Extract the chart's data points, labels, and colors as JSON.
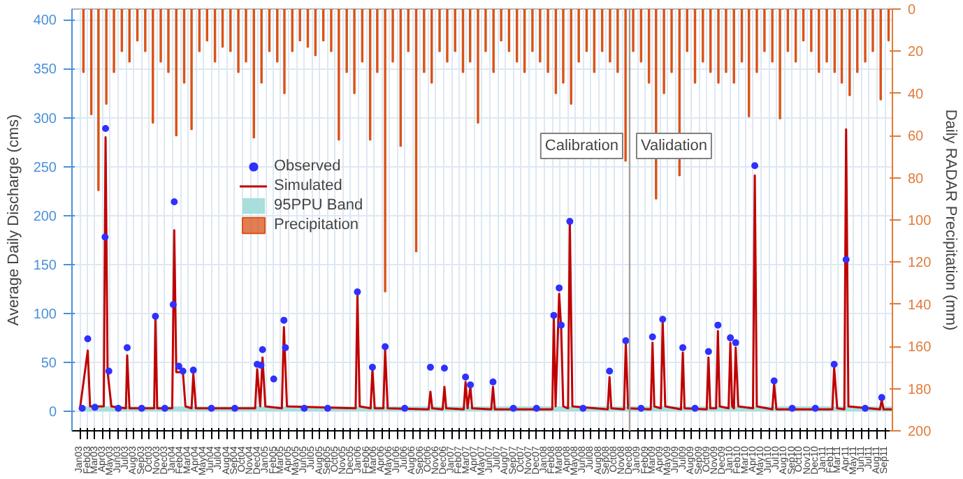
{
  "chart_data": {
    "type": "line",
    "ylabel": "Average Daily Discharge (cms)",
    "y2label": "Daily RADAR Precipitation (mm)",
    "xlim": [
      "2002-12-01",
      "2011-09-30"
    ],
    "ylim": [
      -20,
      411
    ],
    "y2lim": [
      200,
      0
    ],
    "yticks": [
      0,
      50,
      100,
      150,
      200,
      250,
      300,
      350,
      400
    ],
    "y2ticks": [
      0,
      20,
      40,
      60,
      80,
      100,
      120,
      140,
      160,
      180,
      200
    ],
    "xticks": [
      {
        "value": "2003-01",
        "label": "Jan03"
      },
      {
        "value": "2003-02",
        "label": "Feb03"
      },
      {
        "value": "2003-03",
        "label": "Mar03"
      },
      {
        "value": "2003-04",
        "label": "Apr03"
      },
      {
        "value": "2003-05",
        "label": "May03"
      },
      {
        "value": "2003-06",
        "label": "Jun03"
      },
      {
        "value": "2003-07",
        "label": "Jul03"
      },
      {
        "value": "2003-08",
        "label": "Aug03"
      },
      {
        "value": "2003-09",
        "label": "Sep03"
      },
      {
        "value": "2003-10",
        "label": "Oct03"
      },
      {
        "value": "2003-11",
        "label": "Nov03"
      },
      {
        "value": "2003-12",
        "label": "Dec03"
      },
      {
        "value": "2004-01",
        "label": "Jan04"
      },
      {
        "value": "2004-02",
        "label": "Feb04"
      },
      {
        "value": "2004-03",
        "label": "Mar04"
      },
      {
        "value": "2004-04",
        "label": "Apr04"
      },
      {
        "value": "2004-05",
        "label": "May04"
      },
      {
        "value": "2004-06",
        "label": "Jun04"
      },
      {
        "value": "2004-07",
        "label": "Jul04"
      },
      {
        "value": "2004-08",
        "label": "Aug04"
      },
      {
        "value": "2004-09",
        "label": "Sep04"
      },
      {
        "value": "2004-10",
        "label": "Oct04"
      },
      {
        "value": "2004-11",
        "label": "Nov04"
      },
      {
        "value": "2004-12",
        "label": "Dec04"
      },
      {
        "value": "2005-01",
        "label": "Jan05"
      },
      {
        "value": "2005-02",
        "label": "Feb05"
      },
      {
        "value": "2005-03",
        "label": "Mar05"
      },
      {
        "value": "2005-04",
        "label": "Apr05"
      },
      {
        "value": "2005-05",
        "label": "May05"
      },
      {
        "value": "2005-06",
        "label": "Jun05"
      },
      {
        "value": "2005-07",
        "label": "Jul05"
      },
      {
        "value": "2005-08",
        "label": "Aug05"
      },
      {
        "value": "2005-09",
        "label": "Sep05"
      },
      {
        "value": "2005-10",
        "label": "Oct05"
      },
      {
        "value": "2005-11",
        "label": "Nov05"
      },
      {
        "value": "2005-12",
        "label": "Dec05"
      },
      {
        "value": "2006-01",
        "label": "Jan06"
      },
      {
        "value": "2006-02",
        "label": "Feb06"
      },
      {
        "value": "2006-03",
        "label": "Mar06"
      },
      {
        "value": "2006-04",
        "label": "Apr06"
      },
      {
        "value": "2006-05",
        "label": "May06"
      },
      {
        "value": "2006-06",
        "label": "Jun06"
      },
      {
        "value": "2006-07",
        "label": "Jul06"
      },
      {
        "value": "2006-08",
        "label": "Aug06"
      },
      {
        "value": "2006-09",
        "label": "Sep06"
      },
      {
        "value": "2006-10",
        "label": "Oct06"
      },
      {
        "value": "2006-11",
        "label": "Nov06"
      },
      {
        "value": "2006-12",
        "label": "Dec06"
      },
      {
        "value": "2007-01",
        "label": "Jan07"
      },
      {
        "value": "2007-02",
        "label": "Feb07"
      },
      {
        "value": "2007-03",
        "label": "Mar07"
      },
      {
        "value": "2007-04",
        "label": "Apr07"
      },
      {
        "value": "2007-05",
        "label": "May07"
      },
      {
        "value": "2007-06",
        "label": "Jun07"
      },
      {
        "value": "2007-07",
        "label": "Jul07"
      },
      {
        "value": "2007-08",
        "label": "Aug07"
      },
      {
        "value": "2007-09",
        "label": "Sep07"
      },
      {
        "value": "2007-10",
        "label": "Oct07"
      },
      {
        "value": "2007-11",
        "label": "Nov07"
      },
      {
        "value": "2007-12",
        "label": "Dec07"
      },
      {
        "value": "2008-01",
        "label": "Jan08"
      },
      {
        "value": "2008-02",
        "label": "Feb08"
      },
      {
        "value": "2008-03",
        "label": "Mar08"
      },
      {
        "value": "2008-04",
        "label": "Apr08"
      },
      {
        "value": "2008-05",
        "label": "May08"
      },
      {
        "value": "2008-06",
        "label": "Jun08"
      },
      {
        "value": "2008-07",
        "label": "Jul08"
      },
      {
        "value": "2008-08",
        "label": "Aug08"
      },
      {
        "value": "2008-09",
        "label": "Sep08"
      },
      {
        "value": "2008-10",
        "label": "Oct08"
      },
      {
        "value": "2008-11",
        "label": "Nov08"
      },
      {
        "value": "2008-12",
        "label": "Dec08"
      },
      {
        "value": "2009-01",
        "label": "Jan09"
      },
      {
        "value": "2009-02",
        "label": "Feb09"
      },
      {
        "value": "2009-03",
        "label": "Mar09"
      },
      {
        "value": "2009-04",
        "label": "Apr09"
      },
      {
        "value": "2009-05",
        "label": "May09"
      },
      {
        "value": "2009-06",
        "label": "Jun09"
      },
      {
        "value": "2009-07",
        "label": "Jul09"
      },
      {
        "value": "2009-08",
        "label": "Aug09"
      },
      {
        "value": "2009-09",
        "label": "Sep09"
      },
      {
        "value": "2009-10",
        "label": "Oct09"
      },
      {
        "value": "2009-11",
        "label": "Nov09"
      },
      {
        "value": "2009-12",
        "label": "Dec09"
      },
      {
        "value": "2010-01",
        "label": "Jan10"
      },
      {
        "value": "2010-02",
        "label": "Feb10"
      },
      {
        "value": "2010-03",
        "label": "Mar10"
      },
      {
        "value": "2010-04",
        "label": "Apr10"
      },
      {
        "value": "2010-05",
        "label": "May10"
      },
      {
        "value": "2010-06",
        "label": "Jun10"
      },
      {
        "value": "2010-07",
        "label": "Jul10"
      },
      {
        "value": "2010-08",
        "label": "Aug10"
      },
      {
        "value": "2010-09",
        "label": "Sep10"
      },
      {
        "value": "2010-10",
        "label": "Oct10"
      },
      {
        "value": "2010-11",
        "label": "Nov10"
      },
      {
        "value": "2010-12",
        "label": "Dec10"
      },
      {
        "value": "2011-01",
        "label": "Jan11"
      },
      {
        "value": "2011-02",
        "label": "Feb11"
      },
      {
        "value": "2011-03",
        "label": "Mar11"
      },
      {
        "value": "2011-04",
        "label": "Apr11"
      },
      {
        "value": "2011-05",
        "label": "May11"
      },
      {
        "value": "2011-06",
        "label": "Jun11"
      },
      {
        "value": "2011-07",
        "label": "Jul11"
      },
      {
        "value": "2011-08",
        "label": "Aug11"
      },
      {
        "value": "2011-09",
        "label": "Sep11"
      }
    ],
    "grid": true,
    "legend": "left",
    "ref_lines": [
      {
        "axis": "x",
        "value": "2008-12-01",
        "color": "#a0a0a0"
      }
    ],
    "annotations": [
      "Calibration",
      "Validation"
    ],
    "series": [
      {
        "name": "Precipitation",
        "type": "bar",
        "axis": "y2",
        "color": "#d95319",
        "x": [
          "2003-01-15",
          "2003-02-15",
          "2003-03-15",
          "2003-04-15",
          "2003-05-15",
          "2003-06-15",
          "2003-07-15",
          "2003-08-15",
          "2003-09-15",
          "2003-10-15",
          "2003-11-15",
          "2003-12-15",
          "2004-01-15",
          "2004-02-15",
          "2004-03-15",
          "2004-04-15",
          "2004-05-15",
          "2004-06-15",
          "2004-07-15",
          "2004-08-15",
          "2004-09-15",
          "2004-10-15",
          "2004-11-15",
          "2004-12-15",
          "2005-01-15",
          "2005-02-15",
          "2005-03-15",
          "2005-04-15",
          "2005-05-15",
          "2005-06-15",
          "2005-07-15",
          "2005-08-15",
          "2005-09-15",
          "2005-10-15",
          "2005-11-15",
          "2005-12-15",
          "2006-01-15",
          "2006-02-15",
          "2006-03-15",
          "2006-04-15",
          "2006-05-15",
          "2006-06-15",
          "2006-07-15",
          "2006-08-15",
          "2006-09-15",
          "2006-10-15",
          "2006-11-15",
          "2006-12-15",
          "2007-01-15",
          "2007-02-15",
          "2007-03-15",
          "2007-04-15",
          "2007-05-15",
          "2007-06-15",
          "2007-07-15",
          "2007-08-15",
          "2007-09-15",
          "2007-10-15",
          "2007-11-15",
          "2007-12-15",
          "2008-01-15",
          "2008-02-15",
          "2008-03-15",
          "2008-04-15",
          "2008-05-15",
          "2008-06-15",
          "2008-07-15",
          "2008-08-15",
          "2008-09-15",
          "2008-10-15",
          "2008-11-15",
          "2008-12-15",
          "2009-01-15",
          "2009-02-15",
          "2009-03-15",
          "2009-04-15",
          "2009-05-15",
          "2009-06-15",
          "2009-07-15",
          "2009-08-15",
          "2009-09-15",
          "2009-10-15",
          "2009-11-15",
          "2009-12-15",
          "2010-01-15",
          "2010-02-15",
          "2010-03-15",
          "2010-04-15",
          "2010-05-15",
          "2010-06-15",
          "2010-07-15",
          "2010-08-15",
          "2010-09-15",
          "2010-10-15",
          "2010-11-15",
          "2010-12-15",
          "2011-01-15",
          "2011-02-15",
          "2011-03-15",
          "2011-04-15",
          "2011-05-15",
          "2011-06-15",
          "2011-07-15",
          "2011-08-15",
          "2011-09-15"
        ],
        "values": [
          30,
          50,
          86,
          45,
          30,
          20,
          25,
          15,
          20,
          54,
          25,
          30,
          60,
          35,
          57,
          20,
          15,
          25,
          18,
          20,
          30,
          25,
          61,
          35,
          20,
          25,
          40,
          20,
          15,
          18,
          22,
          15,
          20,
          62,
          30,
          40,
          25,
          62,
          30,
          134,
          25,
          65,
          20,
          115,
          30,
          35,
          20,
          25,
          20,
          30,
          25,
          54,
          20,
          30,
          15,
          20,
          25,
          30,
          20,
          25,
          30,
          40,
          35,
          45,
          25,
          20,
          30,
          20,
          25,
          30,
          72,
          20,
          25,
          35,
          90,
          40,
          30,
          79,
          20,
          35,
          25,
          30,
          35,
          30,
          35,
          25,
          51,
          30,
          20,
          25,
          52,
          20,
          25,
          15,
          20,
          30,
          25,
          30,
          35,
          41,
          30,
          25,
          20,
          43,
          15
        ]
      },
      {
        "name": "95PPU Band",
        "type": "area",
        "color": "#a8dedb",
        "x": [
          "2003-01-01",
          "2011-09-30"
        ],
        "values": [
          5,
          5
        ]
      },
      {
        "name": "Simulated",
        "color": "#c00000",
        "line_style": "solid",
        "x": [
          "2003-01-01",
          "2003-02-01",
          "2003-02-10",
          "2003-04-05",
          "2003-04-12",
          "2003-04-20",
          "2003-05-05",
          "2003-07-01",
          "2003-07-06",
          "2003-07-15",
          "2003-10-20",
          "2003-10-25",
          "2003-11-01",
          "2003-12-30",
          "2004-01-07",
          "2004-01-15",
          "2004-02-10",
          "2004-02-20",
          "2004-03-15",
          "2004-03-22",
          "2004-04-01",
          "2004-11-20",
          "2004-11-28",
          "2004-12-10",
          "2004-12-19",
          "2004-12-30",
          "2005-03-05",
          "2005-03-13",
          "2005-03-25",
          "2005-12-20",
          "2005-12-27",
          "2006-01-05",
          "2006-02-17",
          "2006-02-24",
          "2006-03-05",
          "2006-04-08",
          "2006-04-15",
          "2006-04-25",
          "2006-10-03",
          "2006-10-10",
          "2006-10-17",
          "2006-11-27",
          "2006-12-04",
          "2006-12-11",
          "2007-02-18",
          "2007-02-25",
          "2007-03-05",
          "2007-03-16",
          "2007-03-23",
          "2007-06-06",
          "2007-06-13",
          "2007-06-20",
          "2008-02-01",
          "2008-02-07",
          "2008-02-14",
          "2008-02-28",
          "2008-03-07",
          "2008-03-15",
          "2008-04-03",
          "2008-04-10",
          "2008-04-20",
          "2008-09-06",
          "2008-09-13",
          "2008-09-20",
          "2008-11-09",
          "2008-11-16",
          "2008-11-25",
          "2009-02-22",
          "2009-03-01",
          "2009-03-08",
          "2009-04-03",
          "2009-04-10",
          "2009-04-20",
          "2009-06-21",
          "2009-06-28",
          "2009-07-05",
          "2009-09-30",
          "2009-10-07",
          "2009-10-14",
          "2009-11-06",
          "2009-11-13",
          "2009-11-20",
          "2009-12-25",
          "2010-01-01",
          "2010-01-08",
          "2010-01-15",
          "2010-01-22",
          "2010-02-01",
          "2010-03-31",
          "2010-04-07",
          "2010-04-15",
          "2010-06-15",
          "2010-06-22",
          "2010-07-01",
          "2011-02-06",
          "2011-02-13",
          "2011-02-25",
          "2011-03-25",
          "2011-04-01",
          "2011-04-10",
          "2011-08-12",
          "2011-08-19",
          "2011-08-26",
          "2011-09-30"
        ],
        "values": [
          2,
          62,
          5,
          5,
          280,
          40,
          5,
          3,
          57,
          3,
          3,
          95,
          3,
          3,
          185,
          40,
          40,
          5,
          3,
          38,
          3,
          3,
          43,
          5,
          55,
          5,
          3,
          86,
          5,
          3,
          118,
          5,
          3,
          43,
          3,
          3,
          63,
          3,
          2,
          20,
          3,
          2,
          25,
          3,
          2,
          30,
          3,
          25,
          3,
          2,
          25,
          2,
          2,
          95,
          5,
          120,
          85,
          5,
          3,
          194,
          5,
          2,
          35,
          3,
          2,
          70,
          3,
          2,
          70,
          5,
          3,
          92,
          5,
          2,
          60,
          3,
          2,
          55,
          3,
          3,
          82,
          5,
          3,
          70,
          5,
          3,
          65,
          5,
          3,
          241,
          5,
          2,
          28,
          2,
          2,
          45,
          3,
          2,
          288,
          5,
          2,
          12,
          2,
          2
        ]
      },
      {
        "name": "Observed",
        "type": "scatter",
        "marker": "circle",
        "color": "#3030ff",
        "x": [
          "2003-01-10",
          "2003-02-01",
          "2003-03-01",
          "2003-04-10",
          "2003-04-12",
          "2003-04-25",
          "2003-06-01",
          "2003-07-06",
          "2003-09-01",
          "2003-10-25",
          "2003-12-01",
          "2004-01-03",
          "2004-01-07",
          "2004-01-25",
          "2004-02-10",
          "2004-03-22",
          "2004-06-01",
          "2004-09-01",
          "2004-11-28",
          "2004-12-13",
          "2004-12-19",
          "2005-02-01",
          "2005-03-13",
          "2005-03-19",
          "2005-06-01",
          "2005-09-01",
          "2005-12-27",
          "2006-02-24",
          "2006-04-15",
          "2006-07-01",
          "2006-10-10",
          "2006-12-04",
          "2007-02-25",
          "2007-03-16",
          "2007-06-13",
          "2007-09-01",
          "2007-12-01",
          "2008-02-07",
          "2008-02-28",
          "2008-03-07",
          "2008-04-10",
          "2008-06-01",
          "2008-09-13",
          "2008-11-16",
          "2009-01-15",
          "2009-03-01",
          "2009-04-10",
          "2009-06-28",
          "2009-08-15",
          "2009-10-07",
          "2009-11-13",
          "2010-01-01",
          "2010-01-22",
          "2010-04-07",
          "2010-06-22",
          "2010-09-01",
          "2010-12-01",
          "2011-02-13",
          "2011-04-01",
          "2011-06-15",
          "2011-08-19"
        ],
        "values": [
          3,
          74,
          4,
          178,
          289,
          41,
          3,
          65,
          3,
          97,
          3,
          109,
          214,
          46,
          41,
          42,
          3,
          3,
          48,
          47,
          63,
          33,
          93,
          65,
          3,
          3,
          122,
          45,
          66,
          3,
          45,
          44,
          35,
          27,
          30,
          3,
          3,
          98,
          126,
          88,
          194,
          3,
          41,
          72,
          3,
          76,
          94,
          65,
          3,
          61,
          88,
          75,
          70,
          251,
          31,
          3,
          3,
          48,
          155,
          3,
          14
        ]
      }
    ]
  }
}
